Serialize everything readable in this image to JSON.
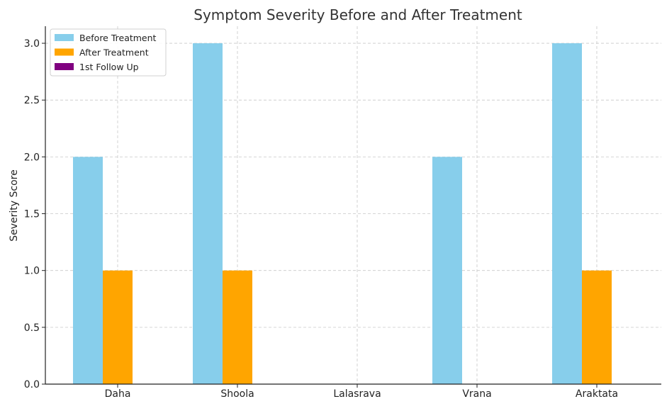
{
  "chart_data": {
    "type": "bar",
    "title": "Symptom Severity Before and After Treatment",
    "xlabel": "",
    "ylabel": "Severity Score",
    "categories": [
      "Daha",
      "Shoola",
      "Lalasrava",
      "Vrana",
      "Araktata"
    ],
    "series": [
      {
        "name": "Before Treatment",
        "color": "#87ceeb",
        "values": [
          2,
          3,
          0,
          2,
          3
        ]
      },
      {
        "name": "After Treatment",
        "color": "#ffa500",
        "values": [
          1,
          1,
          0,
          0,
          1
        ]
      },
      {
        "name": "1st Follow Up",
        "color": "#800080",
        "values": [
          0,
          0,
          0,
          0,
          0
        ]
      }
    ],
    "ylim": [
      0,
      3.15
    ],
    "yticks": [
      "0.0",
      "0.5",
      "1.0",
      "1.5",
      "2.0",
      "2.5",
      "3.0"
    ],
    "grid": true,
    "legend_position": "top-left"
  }
}
